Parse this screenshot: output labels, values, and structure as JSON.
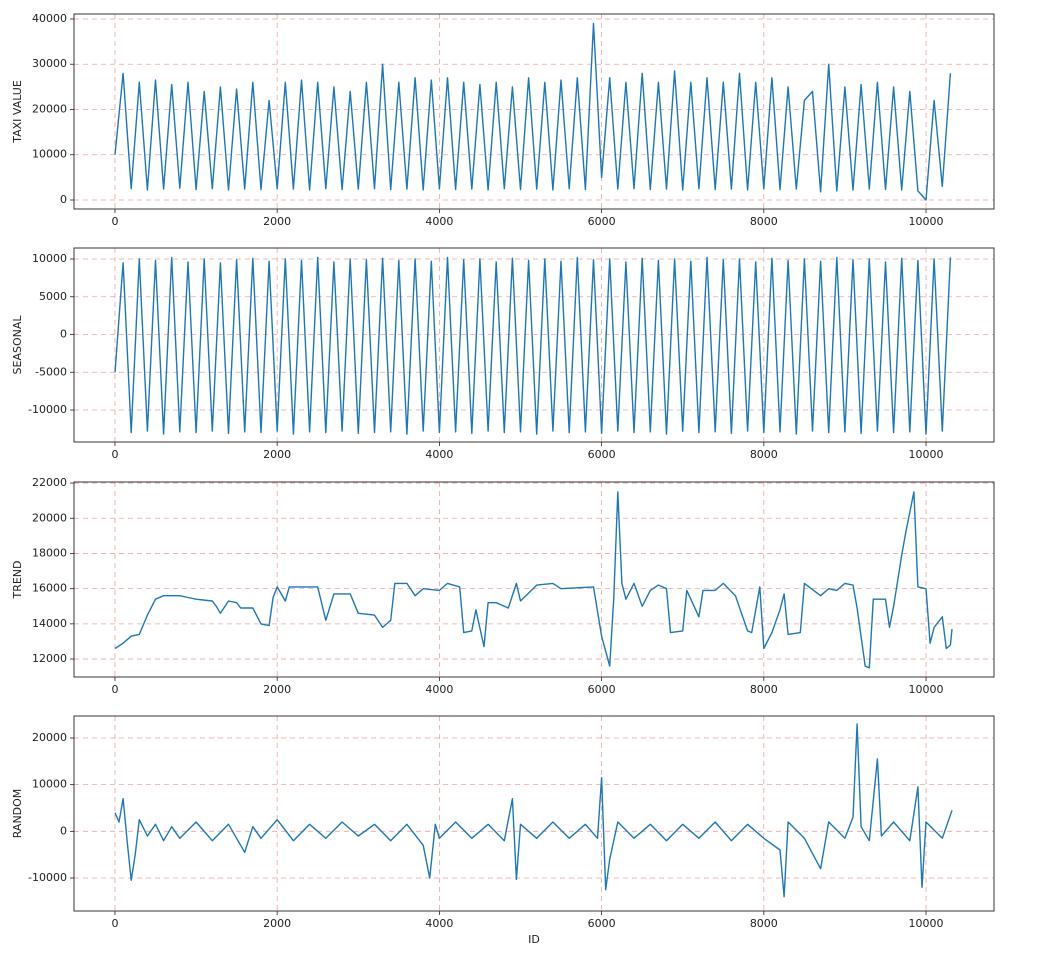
{
  "chart_data": [
    {
      "type": "line",
      "ylabel": "TAXI VALUE",
      "color": "#1f77b4",
      "grid": true,
      "xlim": [
        -505,
        10838
      ],
      "ylim": [
        -1990,
        41100
      ],
      "xticks": [
        0,
        2000,
        4000,
        6000,
        8000,
        10000
      ],
      "yticks": [
        0,
        10000,
        20000,
        30000,
        40000
      ],
      "x": [
        0,
        100,
        200,
        300,
        400,
        500,
        600,
        700,
        800,
        900,
        1000,
        1100,
        1200,
        1300,
        1400,
        1500,
        1600,
        1700,
        1800,
        1900,
        2000,
        2100,
        2200,
        2300,
        2400,
        2500,
        2600,
        2700,
        2800,
        2900,
        3000,
        3100,
        3200,
        3300,
        3400,
        3500,
        3600,
        3700,
        3800,
        3900,
        4000,
        4100,
        4200,
        4300,
        4400,
        4500,
        4600,
        4700,
        4800,
        4900,
        5000,
        5100,
        5200,
        5300,
        5400,
        5500,
        5600,
        5700,
        5800,
        5900,
        6000,
        6100,
        6200,
        6300,
        6400,
        6500,
        6600,
        6700,
        6800,
        6900,
        7000,
        7100,
        7200,
        7300,
        7400,
        7500,
        7600,
        7700,
        7800,
        7900,
        8000,
        8100,
        8200,
        8300,
        8400,
        8500,
        8600,
        8700,
        8800,
        8900,
        9000,
        9100,
        9200,
        9300,
        9400,
        9500,
        9600,
        9700,
        9800,
        9900,
        10000,
        10100,
        10200,
        10300
      ],
      "values": [
        10000,
        28000,
        2500,
        26000,
        2200,
        26500,
        2400,
        25500,
        2600,
        26000,
        2300,
        24000,
        2500,
        25000,
        2200,
        24500,
        2400,
        26000,
        2300,
        22000,
        2500,
        26000,
        2400,
        26500,
        2200,
        26000,
        2500,
        25000,
        2300,
        24000,
        2400,
        26000,
        2500,
        30000,
        2300,
        26000,
        2400,
        27000,
        2200,
        26500,
        2500,
        27000,
        2300,
        26000,
        2400,
        25500,
        2200,
        26000,
        2500,
        25000,
        2300,
        27000,
        2400,
        26000,
        2200,
        26500,
        2500,
        27000,
        2300,
        39000,
        5000,
        27000,
        2400,
        26000,
        2500,
        28000,
        2300,
        26000,
        2400,
        28500,
        2200,
        26000,
        2500,
        27000,
        2300,
        26000,
        2400,
        28000,
        2200,
        26000,
        2500,
        27000,
        2300,
        25000,
        2400,
        22000,
        24000,
        1800,
        30000,
        2000,
        25000,
        2200,
        25500,
        2400,
        26000,
        2300,
        25000,
        2200,
        24000,
        2000,
        0,
        22000,
        3000,
        28000
      ]
    },
    {
      "type": "line",
      "ylabel": "SEASONAL",
      "color": "#1f77b4",
      "grid": true,
      "xlim": [
        -505,
        10838
      ],
      "ylim": [
        -14240,
        11460
      ],
      "xticks": [
        0,
        2000,
        4000,
        6000,
        8000,
        10000
      ],
      "yticks": [
        -10000,
        -5000,
        0,
        5000,
        10000
      ],
      "x": [
        0,
        100,
        200,
        300,
        400,
        500,
        600,
        700,
        800,
        900,
        1000,
        1100,
        1200,
        1300,
        1400,
        1500,
        1600,
        1700,
        1800,
        1900,
        2000,
        2100,
        2200,
        2300,
        2400,
        2500,
        2600,
        2700,
        2800,
        2900,
        3000,
        3100,
        3200,
        3300,
        3400,
        3500,
        3600,
        3700,
        3800,
        3900,
        4000,
        4100,
        4200,
        4300,
        4400,
        4500,
        4600,
        4700,
        4800,
        4900,
        5000,
        5100,
        5200,
        5300,
        5400,
        5500,
        5600,
        5700,
        5800,
        5900,
        6000,
        6100,
        6200,
        6300,
        6400,
        6500,
        6600,
        6700,
        6800,
        6900,
        7000,
        7100,
        7200,
        7300,
        7400,
        7500,
        7600,
        7700,
        7800,
        7900,
        8000,
        8100,
        8200,
        8300,
        8400,
        8500,
        8600,
        8700,
        8800,
        8900,
        9000,
        9100,
        9200,
        9300,
        9400,
        9500,
        9600,
        9700,
        9800,
        9900,
        10000,
        10100,
        10200,
        10300
      ],
      "values": [
        -5000,
        9500,
        -13000,
        10000,
        -12800,
        9800,
        -13200,
        10200,
        -12900,
        9600,
        -13000,
        10000,
        -12800,
        9500,
        -13100,
        9900,
        -12900,
        10100,
        -13000,
        9700,
        -12800,
        10000,
        -13200,
        9800,
        -12900,
        10200,
        -13000,
        9600,
        -12800,
        10000,
        -13100,
        9900,
        -13000,
        10100,
        -12900,
        9800,
        -13200,
        10000,
        -12800,
        9700,
        -13000,
        10200,
        -12900,
        9900,
        -13100,
        10000,
        -12800,
        9600,
        -13000,
        10100,
        -12900,
        9800,
        -13200,
        10000,
        -12800,
        9700,
        -13000,
        10200,
        -12900,
        9900,
        -13100,
        10000,
        -12800,
        9600,
        -13000,
        10100,
        -12900,
        9800,
        -13200,
        10000,
        -12800,
        9700,
        -13000,
        10200,
        -12900,
        9900,
        -13100,
        10000,
        -12800,
        9600,
        -13000,
        10100,
        -12900,
        9800,
        -13200,
        10000,
        -12800,
        9700,
        -13000,
        10200,
        -12900,
        9900,
        -13100,
        10000,
        -12800,
        9600,
        -13000,
        10100,
        -12900,
        9800,
        -13200,
        10000,
        -12800,
        10200
      ]
    },
    {
      "type": "line",
      "ylabel": "TREND",
      "color": "#1f77b4",
      "grid": true,
      "xlim": [
        -505,
        10838
      ],
      "ylim": [
        10980,
        22060
      ],
      "xticks": [
        0,
        2000,
        4000,
        6000,
        8000,
        10000
      ],
      "yticks": [
        12000,
        14000,
        16000,
        18000,
        20000,
        22000
      ],
      "x": [
        0,
        100,
        200,
        300,
        400,
        500,
        600,
        800,
        900,
        1000,
        1200,
        1250,
        1300,
        1400,
        1500,
        1550,
        1700,
        1800,
        1900,
        1950,
        2000,
        2100,
        2150,
        2500,
        2600,
        2700,
        2900,
        3000,
        3200,
        3300,
        3400,
        3450,
        3600,
        3700,
        3800,
        4000,
        4100,
        4250,
        4300,
        4400,
        4450,
        4550,
        4600,
        4700,
        4850,
        4950,
        5000,
        5200,
        5400,
        5500,
        5900,
        6000,
        6100,
        6150,
        6200,
        6250,
        6300,
        6400,
        6500,
        6600,
        6700,
        6800,
        6850,
        7000,
        7050,
        7200,
        7250,
        7400,
        7500,
        7650,
        7800,
        7850,
        7950,
        8000,
        8100,
        8200,
        8250,
        8300,
        8450,
        8500,
        8700,
        8800,
        8900,
        9000,
        9100,
        9150,
        9250,
        9300,
        9350,
        9500,
        9550,
        9600,
        9700,
        9750,
        9850,
        9900,
        10000,
        10050,
        10100,
        10200,
        10250,
        10300,
        10320
      ],
      "values": [
        12600,
        12900,
        13300,
        13400,
        14500,
        15400,
        15600,
        15600,
        15500,
        15400,
        15300,
        15000,
        14600,
        15300,
        15200,
        14900,
        14900,
        14000,
        13900,
        15500,
        16100,
        15300,
        16100,
        16100,
        14200,
        15700,
        15700,
        14600,
        14500,
        13800,
        14200,
        16300,
        16300,
        15600,
        16000,
        15900,
        16300,
        16100,
        13500,
        13600,
        14800,
        12700,
        15200,
        15200,
        14900,
        16300,
        15300,
        16200,
        16300,
        16000,
        16100,
        13300,
        11600,
        15500,
        21500,
        16300,
        15400,
        16300,
        15000,
        15900,
        16200,
        16000,
        13500,
        13600,
        15900,
        14400,
        15900,
        15900,
        16300,
        15600,
        13600,
        13500,
        16100,
        12600,
        13500,
        14800,
        15700,
        13400,
        13500,
        16300,
        15600,
        16000,
        15900,
        16300,
        16200,
        14900,
        11600,
        11500,
        15400,
        15400,
        13800,
        15000,
        17900,
        19200,
        21500,
        16100,
        16000,
        12900,
        13800,
        14400,
        12600,
        12800,
        13700
      ]
    },
    {
      "type": "line",
      "ylabel": "RANDOM",
      "xlabel": "ID",
      "color": "#1f77b4",
      "grid": true,
      "xlim": [
        -505,
        10838
      ],
      "ylim": [
        -17070,
        24710
      ],
      "xticks": [
        0,
        2000,
        4000,
        6000,
        8000,
        10000
      ],
      "yticks": [
        -10000,
        0,
        10000,
        20000
      ],
      "x": [
        0,
        50,
        100,
        150,
        200,
        250,
        300,
        400,
        500,
        600,
        700,
        800,
        1000,
        1200,
        1400,
        1600,
        1700,
        1800,
        2000,
        2200,
        2400,
        2600,
        2800,
        3000,
        3200,
        3400,
        3600,
        3800,
        3880,
        3950,
        4000,
        4200,
        4400,
        4600,
        4800,
        4900,
        4950,
        5000,
        5200,
        5400,
        5600,
        5800,
        5950,
        6000,
        6050,
        6100,
        6200,
        6400,
        6600,
        6800,
        7000,
        7200,
        7400,
        7600,
        7800,
        8000,
        8200,
        8250,
        8300,
        8500,
        8700,
        8800,
        9000,
        9100,
        9150,
        9200,
        9300,
        9400,
        9450,
        9600,
        9800,
        9900,
        9950,
        10000,
        10200,
        10320
      ],
      "values": [
        4000,
        2000,
        7000,
        -2000,
        -10500,
        -5000,
        2500,
        -1000,
        1500,
        -2000,
        1000,
        -1500,
        2000,
        -2000,
        1500,
        -4500,
        1000,
        -1500,
        2500,
        -2000,
        1500,
        -1500,
        2000,
        -1000,
        1500,
        -2000,
        1500,
        -3000,
        -10000,
        1500,
        -1500,
        2000,
        -1500,
        1500,
        -2000,
        7000,
        -10300,
        1500,
        -1500,
        2000,
        -1500,
        1500,
        -1500,
        11500,
        -12500,
        -6000,
        2000,
        -1500,
        1500,
        -2000,
        1500,
        -1500,
        2000,
        -2000,
        1500,
        -1500,
        -4000,
        -14000,
        2000,
        -1500,
        -8000,
        2000,
        -1500,
        3000,
        23000,
        1000,
        -2000,
        15500,
        -1000,
        2000,
        -2000,
        9500,
        -12000,
        2000,
        -1500,
        4500
      ]
    }
  ]
}
